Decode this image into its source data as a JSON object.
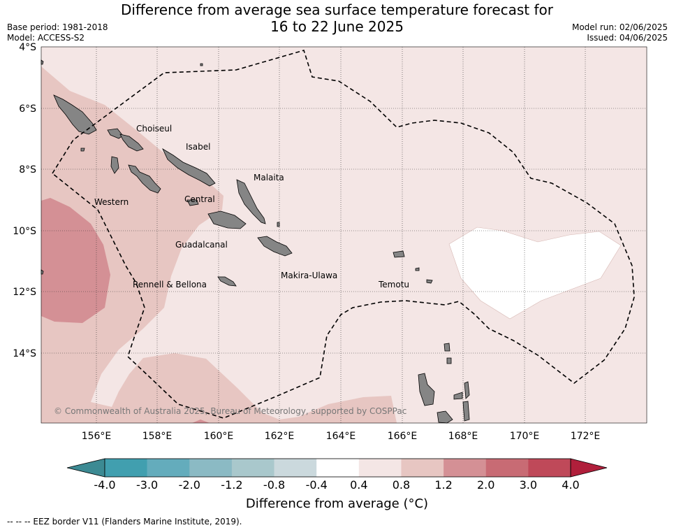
{
  "title_line1": "Difference from average sea surface temperature forecast for",
  "title_line2": "16 to 22 June 2025",
  "meta_left": [
    "Base period: 1981-2018",
    "Model: ACCESS-S2"
  ],
  "meta_right": [
    "Model run: 02/06/2025",
    "Issued: 04/06/2025"
  ],
  "lat_labels": [
    "4°S",
    "6°S",
    "8°S",
    "10°S",
    "12°S",
    "14°S"
  ],
  "lon_labels": [
    "156°E",
    "158°E",
    "160°E",
    "162°E",
    "164°E",
    "166°E",
    "168°E",
    "170°E",
    "172°E"
  ],
  "places": [
    "Choiseul",
    "Isabel",
    "Malaita",
    "Western",
    "Central",
    "Guadalcanal",
    "Rennell & Bellona",
    "Makira-Ulawa",
    "Temotu"
  ],
  "copyright": "© Commonwealth of Australia 2025, Bureau of Meteorology, supported by COSPPac",
  "colorbar": {
    "ticks": [
      "-4.0",
      "-3.0",
      "-2.0",
      "-1.2",
      "-0.8",
      "-0.4",
      "0.4",
      "0.8",
      "1.2",
      "2.0",
      "3.0",
      "4.0"
    ],
    "colors": [
      "#419faf",
      "#64acbc",
      "#8bbac4",
      "#a9c8cc",
      "#cbd9dd",
      "#ffffff",
      "#f4e6e5",
      "#e7c6c2",
      "#d49095",
      "#c86b74",
      "#bf4959"
    ],
    "under_color": "#3c8a93",
    "over_color": "#b01f3b",
    "title": "Difference from average (°C)"
  },
  "legend_footer": "--  --  -- EEZ border V11 (Flanders Marine Institute, 2019).",
  "chart_data": {
    "type": "heatmap",
    "lat_range": [
      "16.3°S",
      "4°S"
    ],
    "lon_range": [
      "154.3°E",
      "174°E"
    ],
    "field_levels_observed": [
      "0.4 to 0.8",
      "0.8 to 1.2",
      "1.2 to 2.0",
      "-0.4 to 0.4"
    ]
  }
}
